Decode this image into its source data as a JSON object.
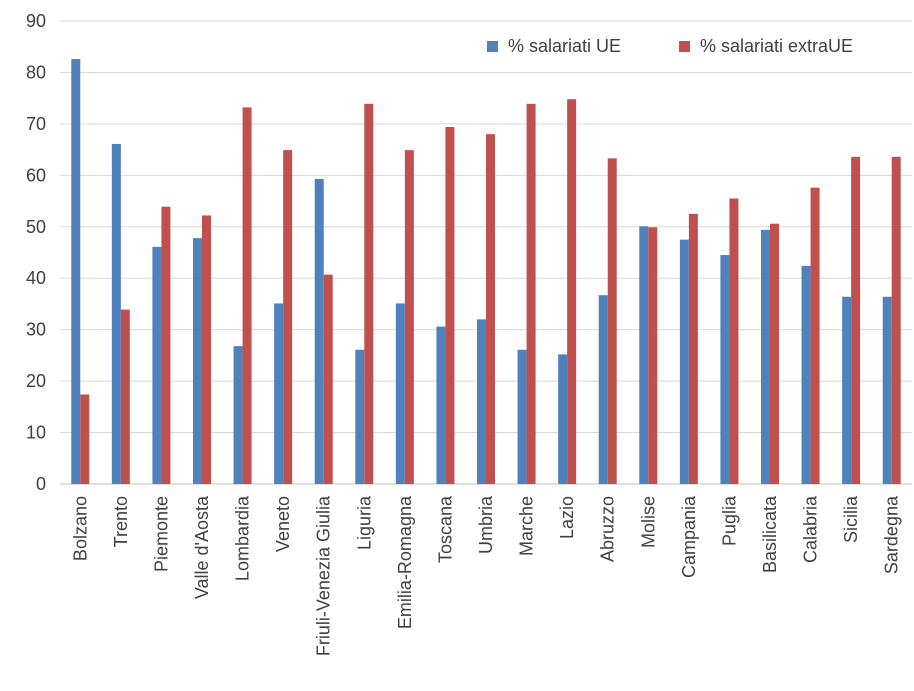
{
  "chart_data": {
    "type": "bar",
    "categories": [
      "Bolzano",
      "Trento",
      "Piemonte",
      "Valle d'Aosta",
      "Lombardia",
      "Veneto",
      "Friuli-Venezia Giulia",
      "Liguria",
      "Emilia-Romagna",
      "Toscana",
      "Umbria",
      "Marche",
      "Lazio",
      "Abruzzo",
      "Molise",
      "Campania",
      "Puglia",
      "Basilicata",
      "Calabria",
      "Sicilia",
      "Sardegna"
    ],
    "series": [
      {
        "name": "% salariati UE",
        "color": "#4f81bd",
        "values": [
          82.6,
          66.1,
          46.1,
          47.8,
          26.8,
          35.1,
          59.3,
          26.1,
          35.1,
          30.6,
          32.0,
          26.1,
          25.2,
          36.7,
          50.1,
          47.5,
          44.5,
          49.4,
          42.4,
          36.4,
          36.4
        ]
      },
      {
        "name": "% salariati extraUE",
        "color": "#c0504d",
        "values": [
          17.4,
          33.9,
          53.9,
          52.2,
          73.2,
          64.9,
          40.7,
          73.9,
          64.9,
          69.4,
          68.0,
          73.9,
          74.8,
          63.3,
          49.9,
          52.5,
          55.5,
          50.6,
          57.6,
          63.6,
          63.6
        ]
      }
    ],
    "yticks": [
      "0",
      "10",
      "20",
      "30",
      "40",
      "50",
      "60",
      "70",
      "80",
      "90"
    ],
    "ylim": [
      0,
      90
    ],
    "grid": true,
    "legend_position": "top-right"
  }
}
